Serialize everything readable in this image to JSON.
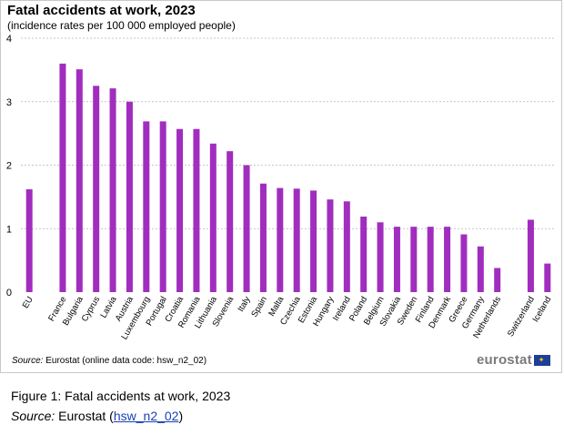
{
  "chart_data": {
    "type": "bar",
    "title": "Fatal accidents at work, 2023",
    "subtitle": "(incidence rates per 100 000 employed  people)",
    "categories": [
      "EU",
      "",
      "France",
      "Bulgaria",
      "Cyprus",
      "Latvia",
      "Austria",
      "Luxembourg",
      "Portugal",
      "Croatia",
      "Romania",
      "Lithuania",
      "Slovenia",
      "Italy",
      "Spain",
      "Malta",
      "Czechia",
      "Estonia",
      "Hungary",
      "Ireland",
      "Poland",
      "Belgium",
      "Slovakia",
      "Sweden",
      "Finland",
      "Denmark",
      "Greece",
      "Germany",
      "Netherlands",
      "",
      "Switzerland",
      "Iceland"
    ],
    "values": [
      1.62,
      null,
      3.6,
      3.51,
      3.25,
      3.21,
      3.0,
      2.69,
      2.69,
      2.57,
      2.57,
      2.34,
      2.22,
      2.0,
      1.71,
      1.64,
      1.63,
      1.6,
      1.46,
      1.43,
      1.19,
      1.1,
      1.03,
      1.03,
      1.03,
      1.03,
      0.91,
      0.72,
      0.38,
      null,
      1.14,
      0.45
    ],
    "yticks": [
      0,
      1,
      2,
      3,
      4
    ],
    "ylim": [
      0,
      4
    ],
    "grid": true,
    "bar_color": "#a12dbf"
  },
  "source_line": {
    "label": "Source:",
    "text": "Eurostat (online data code: hsw_n2_02)"
  },
  "logo": {
    "text": "eurostat",
    "flag_color": "#1f3e96"
  },
  "caption": {
    "title": "Figure 1: Fatal accidents at work, 2023",
    "source_label": "Source:",
    "source_text": "Eurostat",
    "link_text": "hsw_n2_02"
  }
}
